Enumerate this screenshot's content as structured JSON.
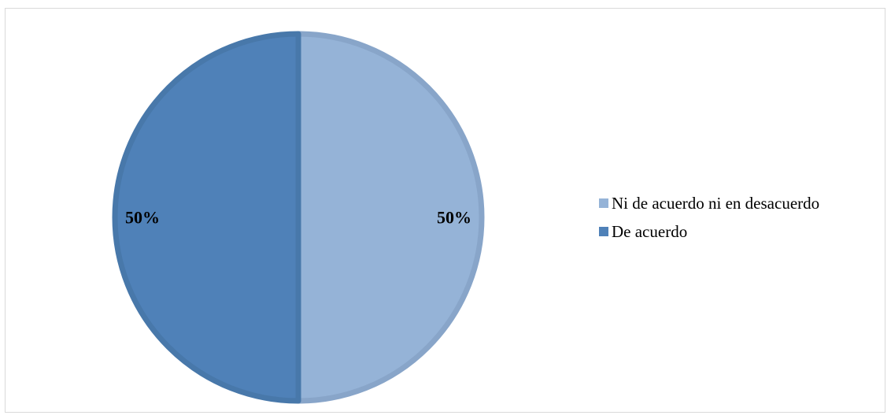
{
  "chart_data": {
    "type": "pie",
    "categories": [
      "Ni de acuerdo ni en desacuerdo",
      "De acuerdo"
    ],
    "values": [
      50,
      50
    ],
    "data_labels": [
      "50%",
      "50%"
    ],
    "colors": [
      "#95b3d7",
      "#4f81b8"
    ],
    "border_colors": [
      "#88a5c9",
      "#4878aa"
    ],
    "legend_position": "right",
    "title": ""
  }
}
